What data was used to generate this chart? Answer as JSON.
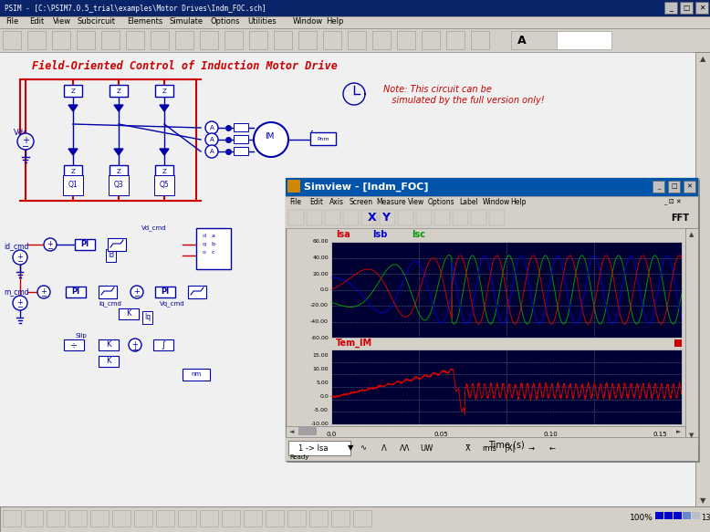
{
  "psim_title": "PSIM - [C:\\PSIM7.0.5_trial\\examples\\Motor Drives\\Indm_FOC.sch]",
  "circuit_title": "Field-Oriented Control of Induction Motor Drive",
  "note_line1": "Note: This circuit can be",
  "note_line2": "   simulated by the full version only!",
  "simview_title": "Simview - [Indm_FOC]",
  "isa_label": "Isa",
  "isb_label": "Isb",
  "isc_label": "Isc",
  "tem_label": "Tem_IM",
  "xlabel": "Time (s)",
  "isa_color": "#cc0000",
  "isb_color": "#0000cc",
  "isc_color": "#009900",
  "tem_color": "#cc0000",
  "win_bg": "#d4d0c8",
  "plot_bg": "#000033",
  "title_bar_color": "#0a246a",
  "simview_title_color": "#0055aa"
}
